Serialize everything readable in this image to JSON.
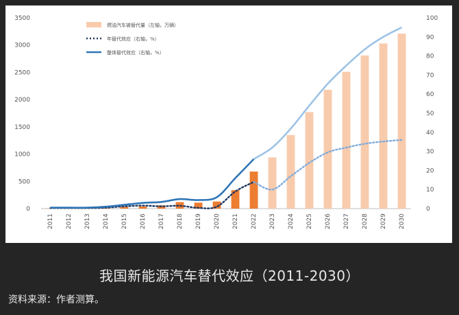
{
  "chart_data": {
    "type": "bar+line",
    "title": "我国新能源汽车替代效应（2011-2030）",
    "categories": [
      "2011",
      "2012",
      "2013",
      "2014",
      "2015",
      "2016",
      "2017",
      "2018",
      "2019",
      "2020",
      "2021",
      "2022",
      "2023",
      "2024",
      "2025",
      "2026",
      "2027",
      "2028",
      "2029",
      "2030"
    ],
    "yleft": {
      "ylim": [
        0,
        3500
      ],
      "ticks": [
        0,
        500,
        1000,
        1500,
        2000,
        2500,
        3000,
        3500
      ]
    },
    "yright": {
      "ylim": [
        0,
        100
      ],
      "ticks": [
        0,
        10,
        20,
        30,
        40,
        50,
        60,
        70,
        80,
        90,
        100
      ]
    },
    "series": [
      {
        "name": "燃油汽车被替代量（左轴，万辆）",
        "kind": "bar",
        "axis": "left",
        "values": [
          5,
          5,
          5,
          10,
          30,
          40,
          60,
          120,
          110,
          130,
          340,
          680,
          940,
          1350,
          1770,
          2180,
          2510,
          2810,
          3030,
          3210
        ],
        "actual_color": "#ed7d31",
        "forecast_color": "#f8cbad",
        "forecast_from": "2023"
      },
      {
        "name": "年替代效应（右轴，%）",
        "kind": "line-dotted",
        "axis": "right",
        "values": [
          0.3,
          0.3,
          0.3,
          0.5,
          1.2,
          1.6,
          1.2,
          1.5,
          0.4,
          1.0,
          9.0,
          14.0,
          10.0,
          17.0,
          24.0,
          29.5,
          32.0,
          34.0,
          35.2,
          36.0
        ],
        "actual_color": "#1f3864",
        "forecast_color": "#7faadc"
      },
      {
        "name": "整体替代效应（右轴，%）",
        "kind": "line",
        "axis": "right",
        "values": [
          0.5,
          0.5,
          0.5,
          1.0,
          2.0,
          3.0,
          3.5,
          5.0,
          4.5,
          6.0,
          16.0,
          26.0,
          32.0,
          42.0,
          54.0,
          65.5,
          75.0,
          83.5,
          90.0,
          95.0
        ],
        "actual_color": "#2e75b6",
        "forecast_color": "#9dc3e6"
      }
    ],
    "legend_position": "top-left",
    "grid": false
  },
  "caption": "我国新能源汽车替代效应（2011-2030）",
  "source": "资料来源：作者测算。"
}
